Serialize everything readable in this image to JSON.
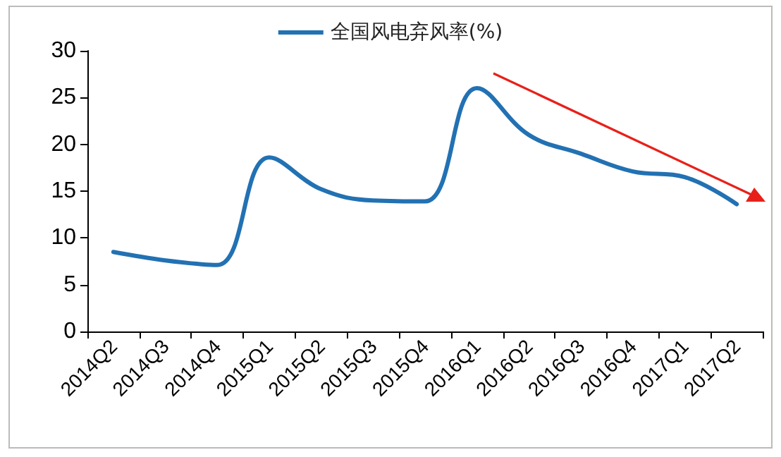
{
  "chart_data": {
    "type": "line",
    "categories": [
      "2014Q2",
      "2014Q3",
      "2014Q4",
      "2015Q1",
      "2015Q2",
      "2015Q3",
      "2015Q4",
      "2016Q1",
      "2016Q2",
      "2016Q3",
      "2016Q4",
      "2017Q1",
      "2017Q2"
    ],
    "series": [
      {
        "name": "全国风电弃风率(%)",
        "color": "#2271b3",
        "values": [
          8.5,
          7.6,
          7.1,
          18.6,
          15.2,
          14.0,
          13.9,
          26.0,
          21.0,
          19.0,
          17.1,
          16.5,
          13.6
        ]
      }
    ],
    "ylim": [
      0,
      30
    ],
    "yticks": [
      0,
      5,
      10,
      15,
      20,
      25,
      30
    ],
    "grid": false,
    "legend": "top",
    "marker": "none",
    "line_style": "solid"
  }
}
